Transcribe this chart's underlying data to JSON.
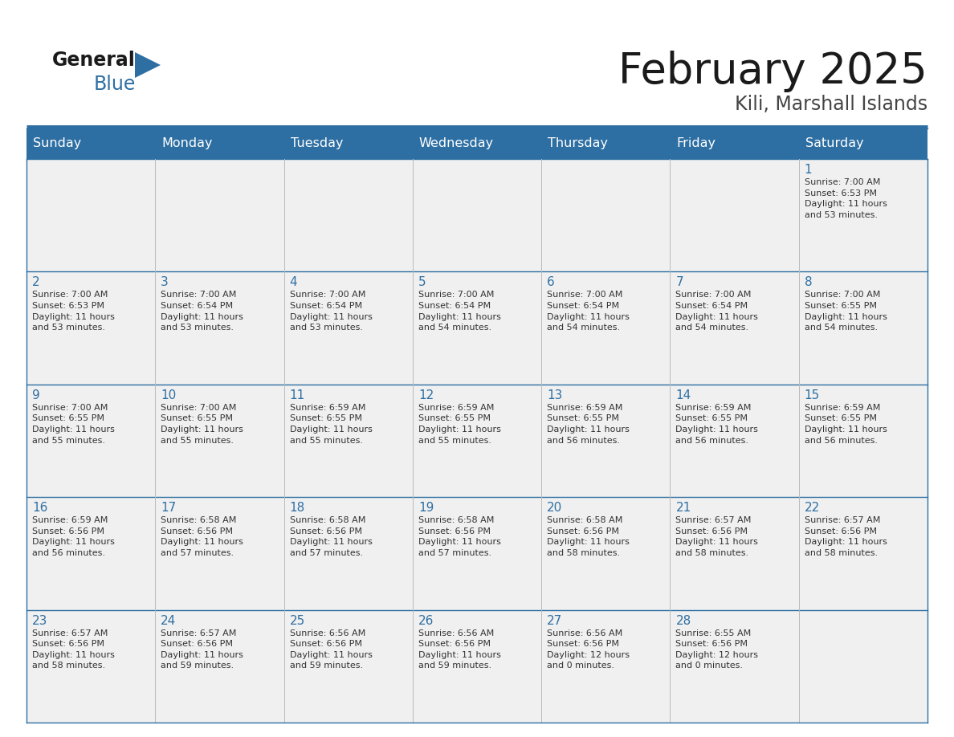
{
  "title": "February 2025",
  "subtitle": "Kili, Marshall Islands",
  "header_bg": "#2E6FA3",
  "header_text_color": "#FFFFFF",
  "cell_bg": "#F0F0F0",
  "day_number_color": "#2E6FA3",
  "cell_text_color": "#333333",
  "days_of_week": [
    "Sunday",
    "Monday",
    "Tuesday",
    "Wednesday",
    "Thursday",
    "Friday",
    "Saturday"
  ],
  "calendar": [
    [
      {
        "day": 0,
        "info": ""
      },
      {
        "day": 0,
        "info": ""
      },
      {
        "day": 0,
        "info": ""
      },
      {
        "day": 0,
        "info": ""
      },
      {
        "day": 0,
        "info": ""
      },
      {
        "day": 0,
        "info": ""
      },
      {
        "day": 1,
        "info": "Sunrise: 7:00 AM\nSunset: 6:53 PM\nDaylight: 11 hours\nand 53 minutes."
      }
    ],
    [
      {
        "day": 2,
        "info": "Sunrise: 7:00 AM\nSunset: 6:53 PM\nDaylight: 11 hours\nand 53 minutes."
      },
      {
        "day": 3,
        "info": "Sunrise: 7:00 AM\nSunset: 6:54 PM\nDaylight: 11 hours\nand 53 minutes."
      },
      {
        "day": 4,
        "info": "Sunrise: 7:00 AM\nSunset: 6:54 PM\nDaylight: 11 hours\nand 53 minutes."
      },
      {
        "day": 5,
        "info": "Sunrise: 7:00 AM\nSunset: 6:54 PM\nDaylight: 11 hours\nand 54 minutes."
      },
      {
        "day": 6,
        "info": "Sunrise: 7:00 AM\nSunset: 6:54 PM\nDaylight: 11 hours\nand 54 minutes."
      },
      {
        "day": 7,
        "info": "Sunrise: 7:00 AM\nSunset: 6:54 PM\nDaylight: 11 hours\nand 54 minutes."
      },
      {
        "day": 8,
        "info": "Sunrise: 7:00 AM\nSunset: 6:55 PM\nDaylight: 11 hours\nand 54 minutes."
      }
    ],
    [
      {
        "day": 9,
        "info": "Sunrise: 7:00 AM\nSunset: 6:55 PM\nDaylight: 11 hours\nand 55 minutes."
      },
      {
        "day": 10,
        "info": "Sunrise: 7:00 AM\nSunset: 6:55 PM\nDaylight: 11 hours\nand 55 minutes."
      },
      {
        "day": 11,
        "info": "Sunrise: 6:59 AM\nSunset: 6:55 PM\nDaylight: 11 hours\nand 55 minutes."
      },
      {
        "day": 12,
        "info": "Sunrise: 6:59 AM\nSunset: 6:55 PM\nDaylight: 11 hours\nand 55 minutes."
      },
      {
        "day": 13,
        "info": "Sunrise: 6:59 AM\nSunset: 6:55 PM\nDaylight: 11 hours\nand 56 minutes."
      },
      {
        "day": 14,
        "info": "Sunrise: 6:59 AM\nSunset: 6:55 PM\nDaylight: 11 hours\nand 56 minutes."
      },
      {
        "day": 15,
        "info": "Sunrise: 6:59 AM\nSunset: 6:55 PM\nDaylight: 11 hours\nand 56 minutes."
      }
    ],
    [
      {
        "day": 16,
        "info": "Sunrise: 6:59 AM\nSunset: 6:56 PM\nDaylight: 11 hours\nand 56 minutes."
      },
      {
        "day": 17,
        "info": "Sunrise: 6:58 AM\nSunset: 6:56 PM\nDaylight: 11 hours\nand 57 minutes."
      },
      {
        "day": 18,
        "info": "Sunrise: 6:58 AM\nSunset: 6:56 PM\nDaylight: 11 hours\nand 57 minutes."
      },
      {
        "day": 19,
        "info": "Sunrise: 6:58 AM\nSunset: 6:56 PM\nDaylight: 11 hours\nand 57 minutes."
      },
      {
        "day": 20,
        "info": "Sunrise: 6:58 AM\nSunset: 6:56 PM\nDaylight: 11 hours\nand 58 minutes."
      },
      {
        "day": 21,
        "info": "Sunrise: 6:57 AM\nSunset: 6:56 PM\nDaylight: 11 hours\nand 58 minutes."
      },
      {
        "day": 22,
        "info": "Sunrise: 6:57 AM\nSunset: 6:56 PM\nDaylight: 11 hours\nand 58 minutes."
      }
    ],
    [
      {
        "day": 23,
        "info": "Sunrise: 6:57 AM\nSunset: 6:56 PM\nDaylight: 11 hours\nand 58 minutes."
      },
      {
        "day": 24,
        "info": "Sunrise: 6:57 AM\nSunset: 6:56 PM\nDaylight: 11 hours\nand 59 minutes."
      },
      {
        "day": 25,
        "info": "Sunrise: 6:56 AM\nSunset: 6:56 PM\nDaylight: 11 hours\nand 59 minutes."
      },
      {
        "day": 26,
        "info": "Sunrise: 6:56 AM\nSunset: 6:56 PM\nDaylight: 11 hours\nand 59 minutes."
      },
      {
        "day": 27,
        "info": "Sunrise: 6:56 AM\nSunset: 6:56 PM\nDaylight: 12 hours\nand 0 minutes."
      },
      {
        "day": 28,
        "info": "Sunrise: 6:55 AM\nSunset: 6:56 PM\nDaylight: 12 hours\nand 0 minutes."
      },
      {
        "day": 0,
        "info": ""
      }
    ]
  ],
  "logo_text1": "General",
  "logo_text2": "Blue",
  "logo_text1_color": "#1a1a1a",
  "logo_text2_color": "#2E6FA3",
  "logo_triangle_color": "#2E6FA3",
  "title_fontsize": 38,
  "subtitle_fontsize": 17,
  "header_fontsize": 11.5,
  "day_number_fontsize": 11,
  "cell_text_fontsize": 8,
  "border_color": "#2E6FA3",
  "divider_color": "#2E6FA3",
  "cell_line_color": "#BBBBBB"
}
